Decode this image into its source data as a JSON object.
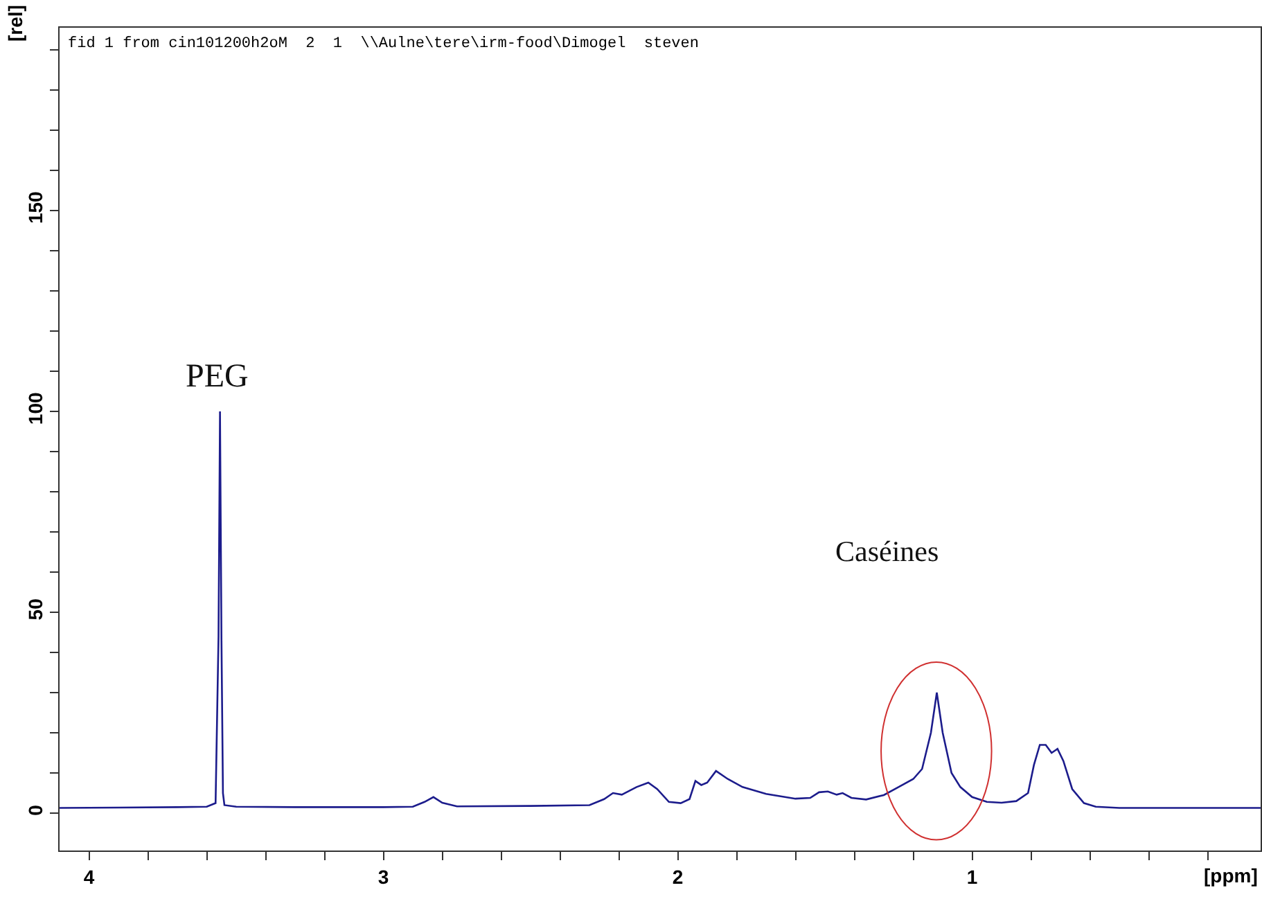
{
  "chart_data": {
    "type": "line",
    "xlabel": "[ppm]",
    "ylabel": "[rel]",
    "annotations": [
      "fid 1 from cin101200h2oM  2  1  \\\\Aulne\\tere\\irm-food\\Dimogel  steven",
      {
        "text": "PEG",
        "x": 3.555,
        "y": 100
      },
      "Caséines"
    ],
    "series": [
      {
        "color": "#1c1c8c",
        "x": [
          4.1,
          3.9,
          3.7,
          3.6,
          3.57,
          3.56,
          3.555,
          3.55,
          3.545,
          3.54,
          3.5,
          3.3,
          3.0,
          2.9,
          2.86,
          2.83,
          2.8,
          2.75,
          2.5,
          2.3,
          2.25,
          2.22,
          2.19,
          2.14,
          2.1,
          2.07,
          2.03,
          1.99,
          1.96,
          1.94,
          1.92,
          1.9,
          1.87,
          1.83,
          1.78,
          1.7,
          1.6,
          1.55,
          1.52,
          1.49,
          1.46,
          1.44,
          1.41,
          1.36,
          1.3,
          1.25,
          1.2,
          1.17,
          1.14,
          1.12,
          1.1,
          1.07,
          1.04,
          1.0,
          0.95,
          0.9,
          0.85,
          0.81,
          0.79,
          0.77,
          0.75,
          0.73,
          0.71,
          0.69,
          0.66,
          0.62,
          0.58,
          0.5,
          0.3,
          0.02
        ],
        "values": [
          1.3,
          1.4,
          1.5,
          1.6,
          2.5,
          44,
          100,
          43,
          5,
          2,
          1.6,
          1.5,
          1.5,
          1.6,
          2.8,
          4,
          2.6,
          1.7,
          1.8,
          2.0,
          3.5,
          5,
          4.6,
          6.5,
          7.6,
          6,
          2.8,
          2.5,
          3.5,
          8,
          7,
          7.6,
          10.5,
          8.5,
          6.5,
          4.8,
          3.6,
          3.8,
          5.2,
          5.4,
          4.6,
          5,
          3.8,
          3.4,
          4.5,
          6.5,
          8.5,
          11,
          20,
          30,
          20,
          10,
          6.5,
          4,
          2.8,
          2.6,
          3.0,
          5,
          12,
          17,
          17,
          15,
          16,
          13,
          6,
          2.5,
          1.6,
          1.3,
          1.3,
          1.3
        ]
      }
    ],
    "xlim": [
      4.1,
      0.02
    ],
    "xticks": [
      4,
      {
        "value": 3.8,
        "label": null
      },
      {
        "value": 3.6,
        "label": null
      },
      {
        "value": 3.4,
        "label": null
      },
      {
        "value": 3.2,
        "label": null
      },
      3,
      {
        "value": 2.8,
        "label": null
      },
      {
        "value": 2.6,
        "label": null
      },
      {
        "value": 2.4,
        "label": null
      },
      {
        "value": 2.2,
        "label": null
      },
      2,
      {
        "value": 1.8,
        "label": null
      },
      {
        "value": 1.6,
        "label": null
      },
      {
        "value": 1.4,
        "label": null
      },
      {
        "value": 1.2,
        "label": null
      },
      1,
      {
        "value": 0.8,
        "label": null
      },
      {
        "value": 0.6,
        "label": null
      },
      {
        "value": 0.4,
        "label": null
      },
      {
        "value": 0.2,
        "label": null
      }
    ],
    "ylim": [
      -9.3,
      195.5
    ],
    "yticks": [
      0,
      {
        "value": 10,
        "label": null
      },
      {
        "value": 20,
        "label": null
      },
      {
        "value": 30,
        "label": null
      },
      {
        "value": 40,
        "label": null
      },
      50,
      {
        "value": 60,
        "label": null
      },
      {
        "value": 70,
        "label": null
      },
      {
        "value": 80,
        "label": null
      },
      {
        "value": 90,
        "label": null
      },
      100,
      {
        "value": 110,
        "label": null
      },
      {
        "value": 120,
        "label": null
      },
      {
        "value": 130,
        "label": null
      },
      {
        "value": 140,
        "label": null
      },
      150,
      {
        "value": 160,
        "label": null
      },
      {
        "value": 170,
        "label": null
      },
      {
        "value": 180,
        "label": null
      },
      {
        "value": 190,
        "label": null
      }
    ],
    "grid": false,
    "marker": "none",
    "line_style": "solid"
  }
}
